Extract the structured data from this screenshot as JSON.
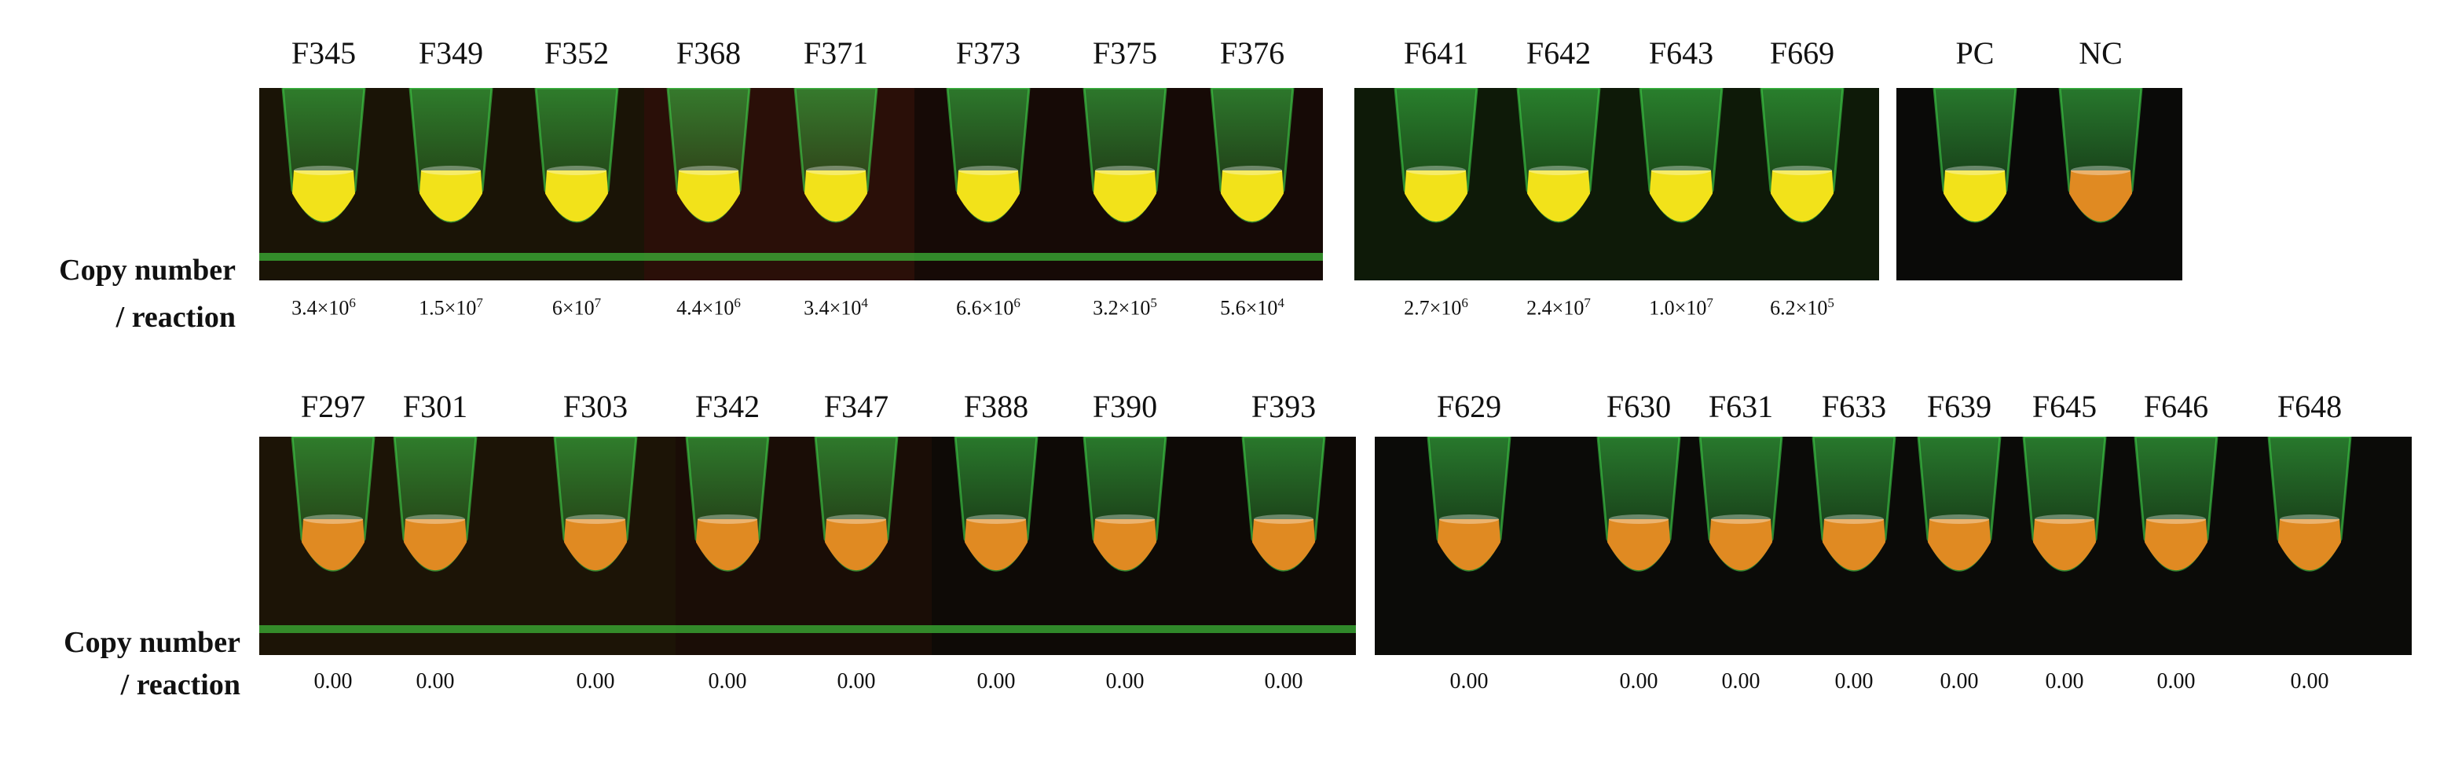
{
  "row1": {
    "copy_label_line1": "Copy number",
    "copy_label_line2": "/ reaction",
    "samples": [
      {
        "id": "F345",
        "value_mantissa": "3.4×10",
        "value_exp": "6"
      },
      {
        "id": "F349",
        "value_mantissa": "1.5×10",
        "value_exp": "7"
      },
      {
        "id": "F352",
        "value_mantissa": "6×10",
        "value_exp": "7"
      },
      {
        "id": "F368",
        "value_mantissa": "4.4×10",
        "value_exp": "6"
      },
      {
        "id": "F371",
        "value_mantissa": "3.4×10",
        "value_exp": "4"
      },
      {
        "id": "F373",
        "value_mantissa": "6.6×10",
        "value_exp": "6"
      },
      {
        "id": "F375",
        "value_mantissa": "3.2×10",
        "value_exp": "5"
      },
      {
        "id": "F376",
        "value_mantissa": "5.6×10",
        "value_exp": "4"
      },
      {
        "id": "F641",
        "value_mantissa": "2.7×10",
        "value_exp": "6"
      },
      {
        "id": "F642",
        "value_mantissa": "2.4×10",
        "value_exp": "7"
      },
      {
        "id": "F643",
        "value_mantissa": "1.0×10",
        "value_exp": "7"
      },
      {
        "id": "F669",
        "value_mantissa": "6.2×10",
        "value_exp": "5"
      }
    ],
    "controls": [
      {
        "id": "PC"
      },
      {
        "id": "NC"
      }
    ]
  },
  "row2": {
    "copy_label_line1": "Copy number",
    "copy_label_line2": "/ reaction",
    "samples": [
      {
        "id": "F297",
        "value": "0.00"
      },
      {
        "id": "F301",
        "value": "0.00"
      },
      {
        "id": "F303",
        "value": "0.00"
      },
      {
        "id": "F342",
        "value": "0.00"
      },
      {
        "id": "F347",
        "value": "0.00"
      },
      {
        "id": "F388",
        "value": "0.00"
      },
      {
        "id": "F390",
        "value": "0.00"
      },
      {
        "id": "F393",
        "value": "0.00"
      },
      {
        "id": "F629",
        "value": "0.00"
      },
      {
        "id": "F630",
        "value": "0.00"
      },
      {
        "id": "F631",
        "value": "0.00"
      },
      {
        "id": "F633",
        "value": "0.00"
      },
      {
        "id": "F639",
        "value": "0.00"
      },
      {
        "id": "F645",
        "value": "0.00"
      },
      {
        "id": "F646",
        "value": "0.00"
      },
      {
        "id": "F648",
        "value": "0.00"
      }
    ]
  },
  "colors": {
    "positive_liquid": "#f2e21a",
    "negative_liquid": "#e08a22",
    "tube_glow": "#3fd24a",
    "photo_bg": "#0b0b08"
  }
}
